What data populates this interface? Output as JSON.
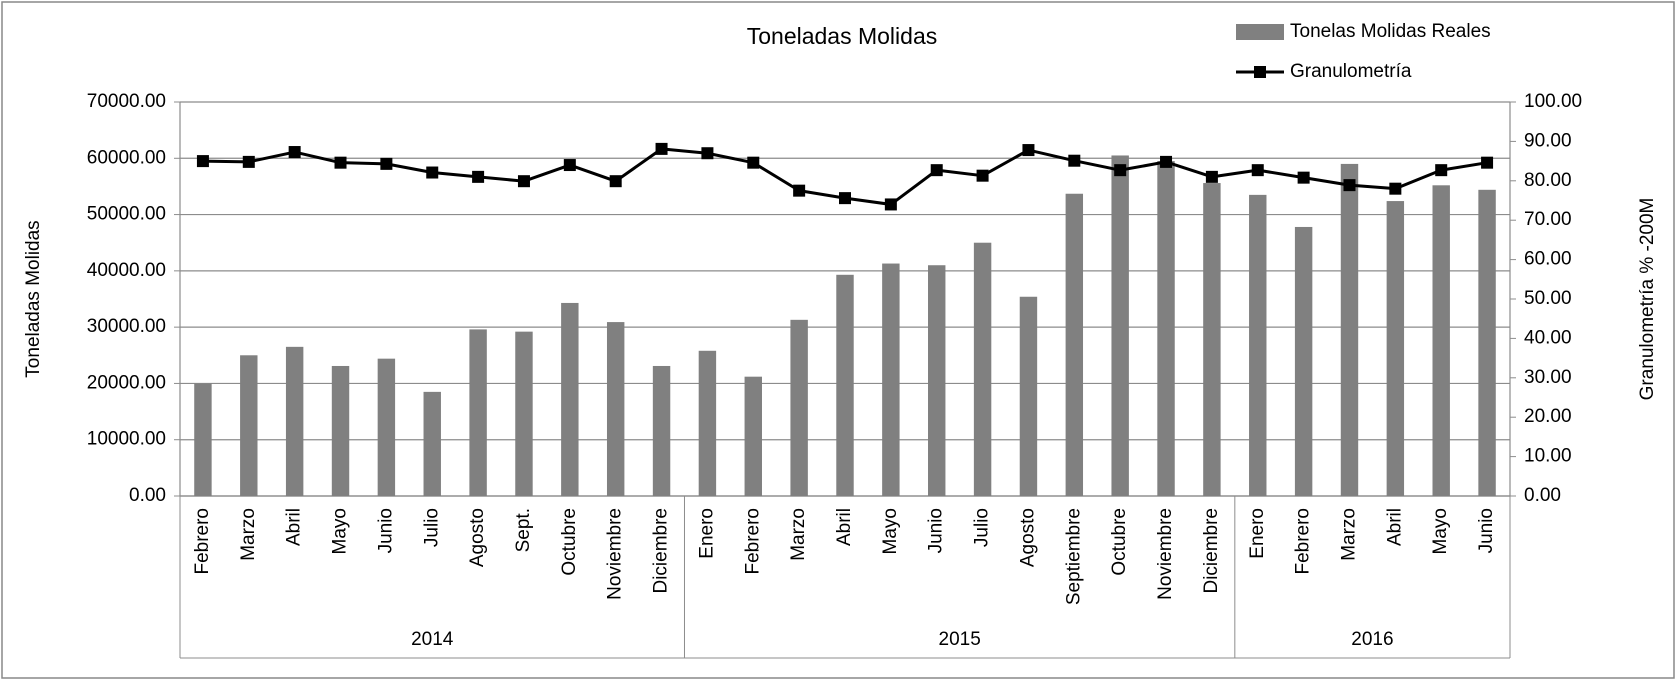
{
  "chart_data": {
    "type": "bar_line",
    "title": "Toneladas Molidas",
    "y_label": "Toneladas Molidas",
    "y2_label": "Granulometría % -200M",
    "category_groups": [
      {
        "label": "2014",
        "categories": [
          "Febrero",
          "Marzo",
          "Abril",
          "Mayo",
          "Junio",
          "Julio",
          "Agosto",
          "Sept.",
          "Octubre",
          "Noviembre",
          "Diciembre"
        ]
      },
      {
        "label": "2015",
        "categories": [
          "Enero",
          "Febrero",
          "Marzo",
          "Abril",
          "Mayo",
          "Junio",
          "Julio",
          "Agosto",
          "Septiembre",
          "Octubre",
          "Noviembre",
          "Diciembre"
        ]
      },
      {
        "label": "2016",
        "categories": [
          "Enero",
          "Febrero",
          "Marzo",
          "Abril",
          "Mayo",
          "Junio"
        ]
      }
    ],
    "series": [
      {
        "name": "Tonelas Molidas Reales",
        "type": "bar",
        "color": "#808080",
        "values": [
          20000,
          25000,
          26500,
          23100,
          24400,
          18500,
          29600,
          29200,
          34300,
          30900,
          23100,
          25800,
          21200,
          31300,
          39300,
          41300,
          41000,
          45000,
          35400,
          53700,
          60500,
          59500,
          55600,
          53500,
          47800,
          59000,
          52400,
          55200,
          54400
        ]
      },
      {
        "name": "Granulometría",
        "type": "line",
        "axis": "y2",
        "color": "#000000",
        "values": [
          85.0,
          84.8,
          87.3,
          84.6,
          84.3,
          82.1,
          81.0,
          79.9,
          84.0,
          79.9,
          88.1,
          87.0,
          84.6,
          77.5,
          75.6,
          74.0,
          82.7,
          81.3,
          87.8,
          85.1,
          82.7,
          84.8,
          81.0,
          82.7,
          80.8,
          78.9,
          78.0,
          82.7,
          84.6
        ]
      }
    ],
    "ylim": [
      0,
      70000
    ],
    "yticks": [
      {
        "value": 0,
        "label": "0.00"
      },
      {
        "value": 10000,
        "label": "10000.00"
      },
      {
        "value": 20000,
        "label": "20000.00"
      },
      {
        "value": 30000,
        "label": "30000.00"
      },
      {
        "value": 40000,
        "label": "40000.00"
      },
      {
        "value": 50000,
        "label": "50000.00"
      },
      {
        "value": 60000,
        "label": "60000.00"
      },
      {
        "value": 70000,
        "label": "70000.00"
      }
    ],
    "y2lim": [
      0,
      100
    ],
    "y2ticks": [
      {
        "value": 0,
        "label": "0.00"
      },
      {
        "value": 10,
        "label": "10.00"
      },
      {
        "value": 20,
        "label": "20.00"
      },
      {
        "value": 30,
        "label": "30.00"
      },
      {
        "value": 40,
        "label": "40.00"
      },
      {
        "value": 50,
        "label": "50.00"
      },
      {
        "value": 60,
        "label": "60.00"
      },
      {
        "value": 70,
        "label": "70.00"
      },
      {
        "value": 80,
        "label": "80.00"
      },
      {
        "value": 90,
        "label": "90.00"
      },
      {
        "value": 100,
        "label": "100.00"
      }
    ],
    "grid": true,
    "legend": "top-right"
  }
}
